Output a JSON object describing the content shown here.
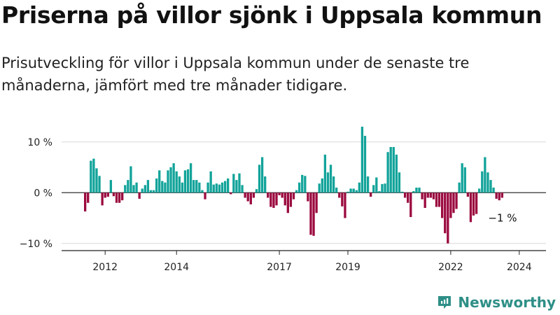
{
  "title": "Priserna på villor sjönk i Uppsala kommun",
  "subtitle": "Prisutveckling för villor i Uppsala kommun under de senaste tre månaderna, jämfört med tre månader tidigare.",
  "brand": {
    "name": "Newsworthy",
    "icon": "newsworthy-logo-icon",
    "color": "#2e8f87"
  },
  "colors": {
    "positive": "#12a39a",
    "negative": "#9b0a3f"
  },
  "chart_data": {
    "type": "bar",
    "title": "Priserna på villor sjönk i Uppsala kommun",
    "ylabel": "",
    "xlabel": "",
    "unit": "%",
    "ylim": [
      -11,
      13
    ],
    "grid": true,
    "yticks": [
      {
        "value": 10,
        "label": "10 %"
      },
      {
        "value": 0,
        "label": "0 %"
      },
      {
        "value": -10,
        "label": "−10 %"
      }
    ],
    "xticks": [
      {
        "index": 7,
        "label": "2012"
      },
      {
        "index": 32,
        "label": "2014"
      },
      {
        "index": 68,
        "label": "2017"
      },
      {
        "index": 92,
        "label": "2019"
      },
      {
        "index": 128,
        "label": "2022"
      },
      {
        "index": 152,
        "label": "2024"
      }
    ],
    "last_label": "−1 %",
    "values": [
      -3.7,
      -2.0,
      6.3,
      6.7,
      4.8,
      3.3,
      -2.5,
      -1.0,
      -0.8,
      2.5,
      -0.7,
      -2.0,
      -2.0,
      -1.5,
      1.5,
      2.5,
      5.2,
      1.5,
      2.0,
      -1.2,
      0.8,
      1.5,
      2.5,
      0.5,
      0.5,
      2.8,
      4.4,
      2.3,
      2.0,
      4.4,
      5.0,
      5.8,
      4.2,
      3.2,
      2.0,
      4.4,
      4.6,
      5.8,
      2.5,
      2.5,
      2.0,
      0.5,
      -1.3,
      2.0,
      4.2,
      1.6,
      1.8,
      1.6,
      2.0,
      2.3,
      2.8,
      -0.3,
      3.7,
      2.5,
      3.8,
      1.5,
      -1.0,
      -1.7,
      -2.3,
      -1.0,
      0.7,
      5.5,
      7.0,
      3.2,
      -1.0,
      -2.8,
      -3.0,
      -2.5,
      -0.5,
      -1.0,
      -2.5,
      -4.0,
      -2.8,
      -1.3,
      0.5,
      2.0,
      3.5,
      3.3,
      -1.7,
      -8.3,
      -8.5,
      -4.0,
      1.8,
      2.8,
      7.5,
      4.0,
      5.5,
      3.2,
      1.0,
      -1.0,
      -2.7,
      -5.0,
      0.2,
      0.8,
      0.8,
      0.5,
      2.0,
      13.0,
      11.2,
      3.2,
      -0.8,
      1.5,
      3.0,
      0.3,
      1.7,
      1.8,
      8.0,
      9.0,
      9.0,
      7.5,
      4.0,
      0.2,
      -1.0,
      -2.0,
      -4.8,
      0.3,
      1.0,
      1.0,
      -1.3,
      -3.0,
      -1.0,
      -1.0,
      -1.3,
      -2.8,
      -2.8,
      -5.0,
      -8.0,
      -10.0,
      -5.0,
      -4.0,
      -3.2,
      2.0,
      5.8,
      5.0,
      -0.8,
      -5.8,
      -4.5,
      -4.2,
      0.8,
      4.2,
      7.0,
      4.0,
      2.5,
      1.0,
      -1.2,
      -1.5,
      -1.0
    ]
  }
}
